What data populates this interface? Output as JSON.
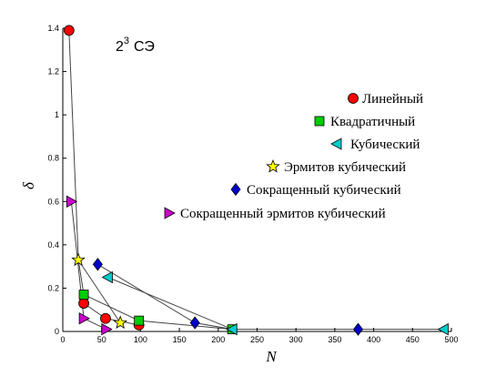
{
  "chart_data": {
    "type": "scatter",
    "annotation": {
      "base": "2",
      "sup": "3",
      "rest": "СЭ"
    },
    "xlabel": "N",
    "ylabel": "δ",
    "xlim": [
      0,
      500
    ],
    "ylim": [
      0,
      1.4
    ],
    "xticks": [
      "0",
      "50",
      "100",
      "150",
      "200",
      "250",
      "300",
      "350",
      "400",
      "450",
      "500"
    ],
    "yticks": [
      "0",
      "0.2",
      "0.4",
      "0.6",
      "0.8",
      "1",
      "1.2",
      "1.4"
    ],
    "grid": false,
    "legend_placement": "right",
    "series": [
      {
        "name": "Линейный",
        "marker": "circle",
        "color": "#ff0000",
        "points": [
          [
            8,
            1.39
          ],
          [
            27,
            0.13
          ],
          [
            55,
            0.06
          ],
          [
            98,
            0.03
          ]
        ]
      },
      {
        "name": "Квадратичный",
        "marker": "square",
        "color": "#00cc00",
        "points": [
          [
            27,
            0.17
          ],
          [
            98,
            0.05
          ],
          [
            218,
            0.01
          ]
        ]
      },
      {
        "name": "Кубический",
        "marker": "triangle-left",
        "color": "#00cccc",
        "points": [
          [
            58,
            0.25
          ],
          [
            218,
            0.01
          ],
          [
            490,
            0.01
          ]
        ]
      },
      {
        "name": "Эрмитов кубический",
        "marker": "star",
        "color": "#ffff00",
        "points": [
          [
            20,
            0.33
          ],
          [
            74,
            0.04
          ]
        ]
      },
      {
        "name": "Сокращенный кубический",
        "marker": "diamond",
        "color": "#0000cc",
        "points": [
          [
            45,
            0.31
          ],
          [
            170,
            0.04
          ],
          [
            380,
            0.01
          ]
        ]
      },
      {
        "name": "Сокращенный эрмитов кубический",
        "marker": "triangle-right",
        "color": "#cc00cc",
        "points": [
          [
            11,
            0.6
          ],
          [
            27,
            0.06
          ],
          [
            56,
            0.01
          ]
        ]
      }
    ],
    "lines": [
      [
        [
          8,
          1.39
        ],
        [
          20,
          0.33
        ],
        [
          27,
          0.17
        ],
        [
          27,
          0.13
        ],
        [
          55,
          0.06
        ],
        [
          98,
          0.03
        ]
      ],
      [
        [
          20,
          0.33
        ],
        [
          74,
          0.04
        ]
      ],
      [
        [
          45,
          0.31
        ],
        [
          170,
          0.04
        ],
        [
          218,
          0.01
        ],
        [
          380,
          0.01
        ],
        [
          490,
          0.01
        ]
      ],
      [
        [
          58,
          0.25
        ],
        [
          218,
          0.01
        ]
      ],
      [
        [
          11,
          0.6
        ],
        [
          27,
          0.06
        ],
        [
          56,
          0.01
        ]
      ],
      [
        [
          27,
          0.17
        ],
        [
          98,
          0.05
        ],
        [
          218,
          0.01
        ]
      ]
    ]
  }
}
